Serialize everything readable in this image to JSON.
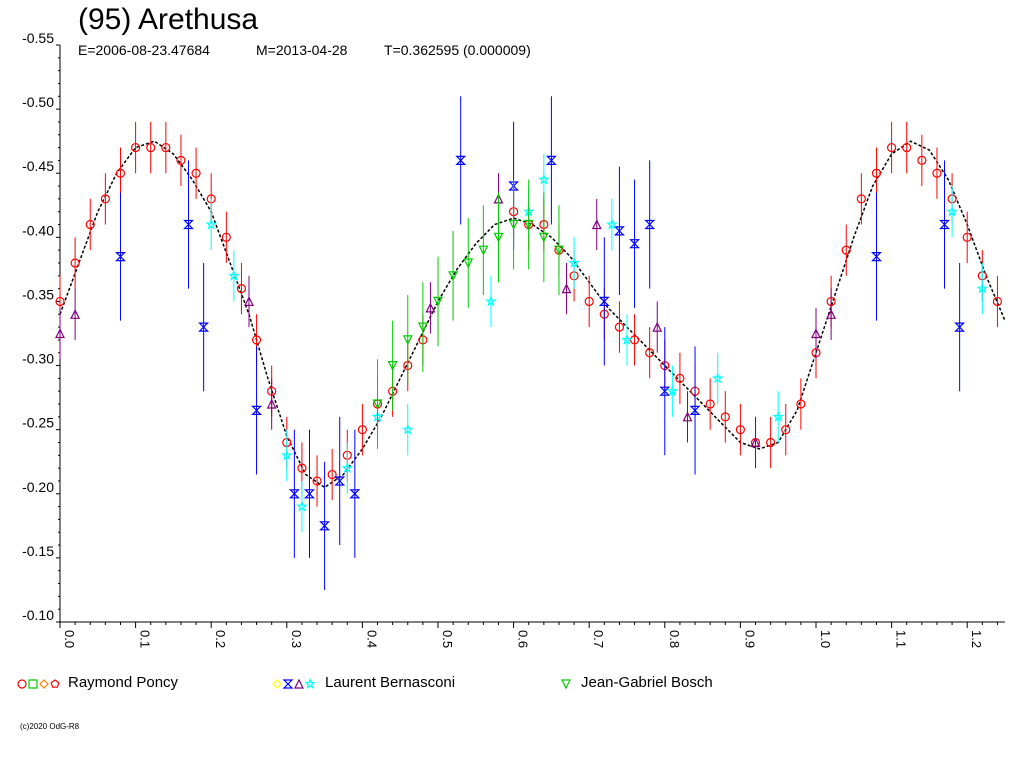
{
  "chart_data": {
    "type": "scatter",
    "title": "(95) Arethusa",
    "subtitle": {
      "epoch": "E=2006-08-23.47684",
      "mean": "M=2013-04-28",
      "period": "T=0.362595 (0.000009)"
    },
    "xlabel": "",
    "ylabel": "",
    "xlim": [
      0.0,
      1.25
    ],
    "ylim": [
      -0.55,
      -0.1
    ],
    "y_inverted": true,
    "x_ticks": [
      "0.0",
      "0.1",
      "0.2",
      "0.3",
      "0.4",
      "0.5",
      "0.6",
      "0.7",
      "0.8",
      "0.9",
      "1.0",
      "1.1",
      "1.2"
    ],
    "y_ticks": [
      "-0.55",
      "-0.50",
      "-0.45",
      "-0.40",
      "-0.35",
      "-0.30",
      "-0.25",
      "-0.20",
      "-0.15",
      "-0.10"
    ],
    "grid": false,
    "legend_position": "bottom",
    "legend": [
      {
        "name": "Raymond Poncy",
        "symbols": [
          "circle",
          "square",
          "diamond",
          "pentagon"
        ],
        "colors": [
          "#ff0000",
          "#00cc00",
          "#ff8000",
          "#ff0000"
        ]
      },
      {
        "name": "Laurent Bernasconi",
        "symbols": [
          "diamond",
          "hourglass",
          "triangle",
          "star"
        ],
        "colors": [
          "#ffff00",
          "#0000ff",
          "#800080",
          "#00ffff"
        ]
      },
      {
        "name": "Jean-Gabriel Bosch",
        "symbols": [
          "triangle-down"
        ],
        "colors": [
          "#00cc00"
        ]
      }
    ],
    "fit_curve": {
      "x": [
        0.0,
        0.025,
        0.05,
        0.075,
        0.1,
        0.125,
        0.15,
        0.175,
        0.2,
        0.225,
        0.25,
        0.275,
        0.3,
        0.325,
        0.35,
        0.375,
        0.4,
        0.425,
        0.45,
        0.475,
        0.5,
        0.525,
        0.55,
        0.575,
        0.6,
        0.625,
        0.65,
        0.675,
        0.7,
        0.725,
        0.75,
        0.775,
        0.8,
        0.825,
        0.85,
        0.875,
        0.9,
        0.925,
        0.95,
        0.975,
        1.0,
        1.025,
        1.05,
        1.075,
        1.1,
        1.125,
        1.15,
        1.175,
        1.2,
        1.225,
        1.25
      ],
      "y": [
        -0.34,
        -0.38,
        -0.42,
        -0.45,
        -0.47,
        -0.475,
        -0.465,
        -0.445,
        -0.42,
        -0.38,
        -0.34,
        -0.29,
        -0.245,
        -0.215,
        -0.205,
        -0.215,
        -0.235,
        -0.26,
        -0.29,
        -0.32,
        -0.35,
        -0.375,
        -0.395,
        -0.41,
        -0.415,
        -0.41,
        -0.4,
        -0.385,
        -0.365,
        -0.345,
        -0.33,
        -0.315,
        -0.3,
        -0.285,
        -0.27,
        -0.255,
        -0.24,
        -0.235,
        -0.24,
        -0.265,
        -0.31,
        -0.355,
        -0.4,
        -0.44,
        -0.465,
        -0.475,
        -0.468,
        -0.445,
        -0.41,
        -0.37,
        -0.335
      ]
    },
    "series": [
      {
        "name": "Raymond Poncy",
        "symbol": "circle",
        "color": "#ff0000",
        "x": [
          0.0,
          0.02,
          0.04,
          0.06,
          0.08,
          0.1,
          0.12,
          0.14,
          0.16,
          0.18,
          0.2,
          0.22,
          0.24,
          0.26,
          0.28,
          0.3,
          0.32,
          0.34,
          0.36,
          0.38,
          0.4,
          0.42,
          0.44,
          0.46,
          0.48,
          0.6,
          0.62,
          0.64,
          0.66,
          0.68,
          0.7,
          0.72,
          0.74,
          0.76,
          0.78,
          0.8,
          0.82,
          0.84,
          0.86,
          0.88,
          0.9,
          0.92,
          0.94,
          0.96,
          0.98,
          1.0,
          1.02,
          1.04,
          1.06,
          1.08,
          1.1,
          1.12,
          1.14,
          1.16,
          1.18,
          1.2,
          1.22,
          1.24
        ],
        "y": [
          -0.35,
          -0.38,
          -0.41,
          -0.43,
          -0.45,
          -0.47,
          -0.47,
          -0.47,
          -0.46,
          -0.45,
          -0.43,
          -0.4,
          -0.36,
          -0.32,
          -0.28,
          -0.24,
          -0.22,
          -0.21,
          -0.215,
          -0.23,
          -0.25,
          -0.27,
          -0.28,
          -0.3,
          -0.32,
          -0.42,
          -0.41,
          -0.41,
          -0.39,
          -0.37,
          -0.35,
          -0.34,
          -0.33,
          -0.32,
          -0.31,
          -0.3,
          -0.29,
          -0.28,
          -0.27,
          -0.26,
          -0.25,
          -0.24,
          -0.24,
          -0.25,
          -0.27,
          -0.31,
          -0.35,
          -0.39,
          -0.43,
          -0.45,
          -0.47,
          -0.47,
          -0.46,
          -0.45,
          -0.43,
          -0.4,
          -0.37,
          -0.35
        ],
        "errors": [
          0.02,
          0.02,
          0.02,
          0.02,
          0.02,
          0.02,
          0.02,
          0.02,
          0.02,
          0.02,
          0.02,
          0.02,
          0.02,
          0.02,
          0.02,
          0.02,
          0.02,
          0.02,
          0.02,
          0.02,
          0.02,
          0.02,
          0.02,
          0.02,
          0.02,
          0.02,
          0.02,
          0.02,
          0.02,
          0.02,
          0.02,
          0.02,
          0.02,
          0.02,
          0.02,
          0.02,
          0.02,
          0.02,
          0.02,
          0.02,
          0.02,
          0.02,
          0.02,
          0.02,
          0.02,
          0.02,
          0.02,
          0.02,
          0.02,
          0.02,
          0.02,
          0.02,
          0.02,
          0.02,
          0.02,
          0.02,
          0.02,
          0.02
        ]
      },
      {
        "name": "Laurent Bernasconi",
        "symbol": "hourglass",
        "color": "#0000ff",
        "x": [
          0.08,
          0.17,
          0.19,
          0.26,
          0.31,
          0.33,
          0.35,
          0.37,
          0.39,
          0.53,
          0.6,
          0.65,
          0.72,
          0.74,
          0.76,
          0.78,
          0.8,
          0.84,
          1.08,
          1.17,
          1.19
        ],
        "y": [
          -0.385,
          -0.41,
          -0.33,
          -0.265,
          -0.2,
          -0.2,
          -0.175,
          -0.21,
          -0.2,
          -0.46,
          -0.44,
          -0.46,
          -0.35,
          -0.405,
          -0.395,
          -0.41,
          -0.28,
          -0.265,
          -0.385,
          -0.41,
          -0.33
        ],
        "errors": [
          0.05,
          0.05,
          0.05,
          0.05,
          0.05,
          0.05,
          0.05,
          0.05,
          0.05,
          0.05,
          0.05,
          0.05,
          0.05,
          0.05,
          0.05,
          0.05,
          0.05,
          0.05,
          0.05,
          0.05,
          0.05
        ]
      },
      {
        "name": "Laurent Bernasconi",
        "symbol": "triangle",
        "color": "#800080",
        "x": [
          0.0,
          0.02,
          0.25,
          0.28,
          0.49,
          0.58,
          0.67,
          0.71,
          0.79,
          0.83,
          0.92,
          1.0,
          1.02
        ],
        "y": [
          -0.325,
          -0.34,
          -0.35,
          -0.27,
          -0.345,
          -0.43,
          -0.36,
          -0.41,
          -0.33,
          -0.26,
          -0.24,
          -0.325,
          -0.34
        ],
        "errors": [
          0.02,
          0.02,
          0.02,
          0.02,
          0.02,
          0.02,
          0.02,
          0.02,
          0.02,
          0.02,
          0.02,
          0.02,
          0.02
        ]
      },
      {
        "name": "Laurent Bernasconi",
        "symbol": "star",
        "color": "#00ffff",
        "x": [
          0.2,
          0.23,
          0.3,
          0.32,
          0.38,
          0.42,
          0.46,
          0.57,
          0.62,
          0.64,
          0.68,
          0.73,
          0.75,
          0.81,
          0.87,
          0.95,
          1.18,
          1.22
        ],
        "y": [
          -0.41,
          -0.37,
          -0.23,
          -0.19,
          -0.22,
          -0.26,
          -0.25,
          -0.35,
          -0.42,
          -0.445,
          -0.38,
          -0.41,
          -0.32,
          -0.28,
          -0.29,
          -0.26,
          -0.42,
          -0.36
        ],
        "errors": [
          0.02,
          0.02,
          0.02,
          0.02,
          0.02,
          0.02,
          0.02,
          0.02,
          0.02,
          0.02,
          0.02,
          0.02,
          0.02,
          0.02,
          0.02,
          0.02,
          0.02,
          0.02
        ]
      },
      {
        "name": "Jean-Gabriel Bosch",
        "symbol": "triangle-down",
        "color": "#00cc00",
        "x": [
          0.42,
          0.44,
          0.46,
          0.48,
          0.5,
          0.52,
          0.54,
          0.56,
          0.58,
          0.6,
          0.62,
          0.64,
          0.66
        ],
        "y": [
          -0.27,
          -0.3,
          -0.32,
          -0.33,
          -0.35,
          -0.37,
          -0.38,
          -0.39,
          -0.4,
          -0.41,
          -0.41,
          -0.4,
          -0.39
        ],
        "errors": [
          0.035,
          0.035,
          0.035,
          0.035,
          0.035,
          0.035,
          0.035,
          0.035,
          0.035,
          0.035,
          0.035,
          0.035,
          0.035
        ]
      }
    ]
  },
  "copyright": "(c)2020 OdG-R8"
}
